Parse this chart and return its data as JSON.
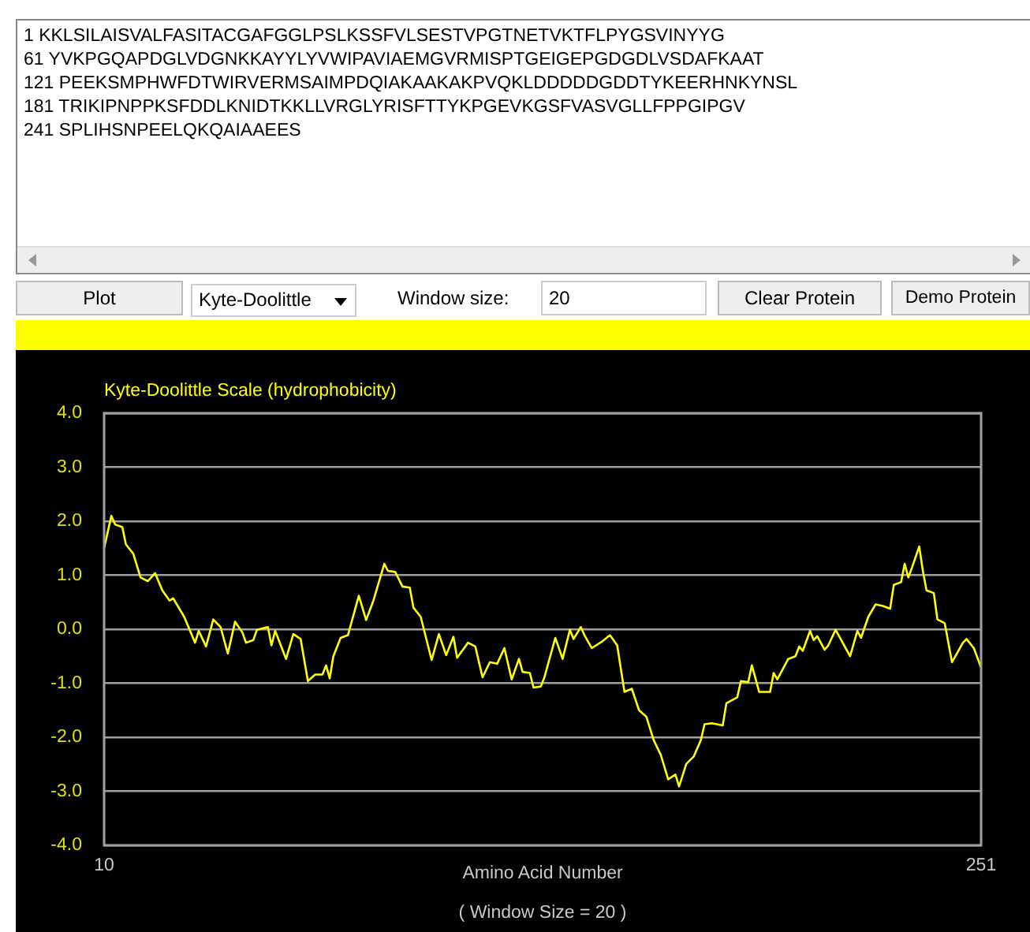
{
  "chart_data": {
    "type": "line",
    "title": "Kyte-Doolittle Scale (hydrophobicity)",
    "xlabel": "Amino Acid Number",
    "annotations": [
      "1 KKLSILAISVALFASITACGAFGGLPSLKSSFVLSESTVPGTNETVKTFLPYGSVINYYG",
      "61 YVKPGQAPDGLVDGNKKAYYLYVWIPAVIAEMGVRMISPTGEIGEPGDGDLVSDAFKAAT",
      "121 PEEKSMPHWFDTWIRVERMSAIMPDQIAKAAKAKPVQKLDDDDDGDDTYKEERHNKYNSL",
      "181 TRIKIPNPPKSFDDLKNIDTKKLLVRGLYRISFTTYKPGEVKGSFVASVGLLFPPGIPGV",
      "241 SPLIHSNPEELQKQAIAAEES",
      "Plot",
      "Kyte-Doolittle",
      "Window size:",
      "20",
      "Clear Protein",
      "Demo Protein",
      "( Window Size = 20 )"
    ],
    "x": [
      10,
      12,
      13,
      15,
      16,
      18,
      20,
      22,
      24,
      26,
      28,
      29,
      32,
      35,
      36,
      38,
      40,
      42,
      44,
      46,
      48,
      49,
      51,
      52,
      55,
      56,
      57,
      60,
      62,
      64,
      66,
      68,
      70,
      71,
      72,
      73,
      75,
      77,
      80,
      82,
      84,
      87,
      88,
      90,
      92,
      94,
      95,
      97,
      100,
      102,
      104,
      106,
      107,
      110,
      112,
      114,
      116,
      118,
      120,
      122,
      124,
      125,
      127,
      128,
      130,
      131,
      134,
      136,
      138,
      139,
      141,
      142,
      144,
      147,
      149,
      151,
      153,
      155,
      157,
      159,
      161,
      163,
      165,
      167,
      168,
      170,
      172,
      174,
      175,
      177,
      180,
      181,
      184,
      185,
      187,
      188,
      189,
      190,
      193,
      194,
      195,
      198,
      200,
      201,
      202,
      204,
      205,
      206,
      208,
      209,
      211,
      215,
      217,
      218,
      220,
      222,
      224,
      226,
      227,
      229,
      230,
      231,
      232,
      234,
      235,
      236,
      238,
      239,
      241,
      243,
      246,
      247,
      249,
      251
    ],
    "series": [
      {
        "color": "#ffff00",
        "values": [
          1.5,
          2.1,
          1.94,
          1.89,
          1.57,
          1.4,
          0.96,
          0.89,
          1.04,
          0.72,
          0.53,
          0.57,
          0.23,
          -0.25,
          -0.03,
          -0.32,
          0.18,
          0.04,
          -0.45,
          0.14,
          -0.06,
          -0.25,
          -0.2,
          -0.01,
          0.04,
          -0.3,
          -0.03,
          -0.55,
          -0.09,
          -0.18,
          -0.96,
          -0.84,
          -0.84,
          -0.67,
          -0.91,
          -0.5,
          -0.16,
          -0.11,
          0.62,
          0.17,
          0.53,
          1.21,
          1.08,
          1.06,
          0.79,
          0.77,
          0.4,
          0.23,
          -0.57,
          -0.09,
          -0.48,
          -0.14,
          -0.53,
          -0.25,
          -0.32,
          -0.89,
          -0.61,
          -0.64,
          -0.35,
          -0.93,
          -0.55,
          -0.79,
          -0.81,
          -1.08,
          -1.06,
          -0.89,
          -0.16,
          -0.55,
          -0.01,
          -0.18,
          0.04,
          -0.11,
          -0.35,
          -0.22,
          -0.11,
          -0.3,
          -1.16,
          -1.1,
          -1.5,
          -1.62,
          -2.05,
          -2.33,
          -2.78,
          -2.69,
          -2.91,
          -2.49,
          -2.36,
          -2.05,
          -1.76,
          -1.74,
          -1.78,
          -1.37,
          -1.26,
          -0.96,
          -0.98,
          -0.67,
          -0.91,
          -1.16,
          -1.16,
          -0.81,
          -0.93,
          -0.55,
          -0.5,
          -0.32,
          -0.4,
          -0.03,
          -0.2,
          -0.13,
          -0.38,
          -0.3,
          -0.01,
          -0.5,
          -0.03,
          -0.16,
          0.23,
          0.46,
          0.43,
          0.38,
          0.82,
          0.87,
          1.21,
          0.96,
          1.14,
          1.53,
          1.08,
          0.72,
          0.67,
          0.18,
          0.11,
          -0.61,
          -0.25,
          -0.18,
          -0.35,
          -0.71
        ]
      }
    ],
    "xlim": [
      10,
      251
    ],
    "xticks": [
      10,
      251
    ],
    "ylim": [
      -4,
      4
    ],
    "yticks": [
      {
        "value": -4,
        "label": "-4.0"
      },
      {
        "value": -3,
        "label": "-3.0"
      },
      {
        "value": -2,
        "label": "-2.0"
      },
      {
        "value": -1,
        "label": "-1.0"
      },
      {
        "value": 0,
        "label": "0.0"
      },
      {
        "value": 1,
        "label": "1.0"
      },
      {
        "value": 2,
        "label": "2.0"
      },
      {
        "value": 3,
        "label": "3.0"
      },
      {
        "value": 4,
        "label": "4.0"
      }
    ],
    "grid": "y",
    "legend": false,
    "marker": "none",
    "line_style": "solid"
  }
}
